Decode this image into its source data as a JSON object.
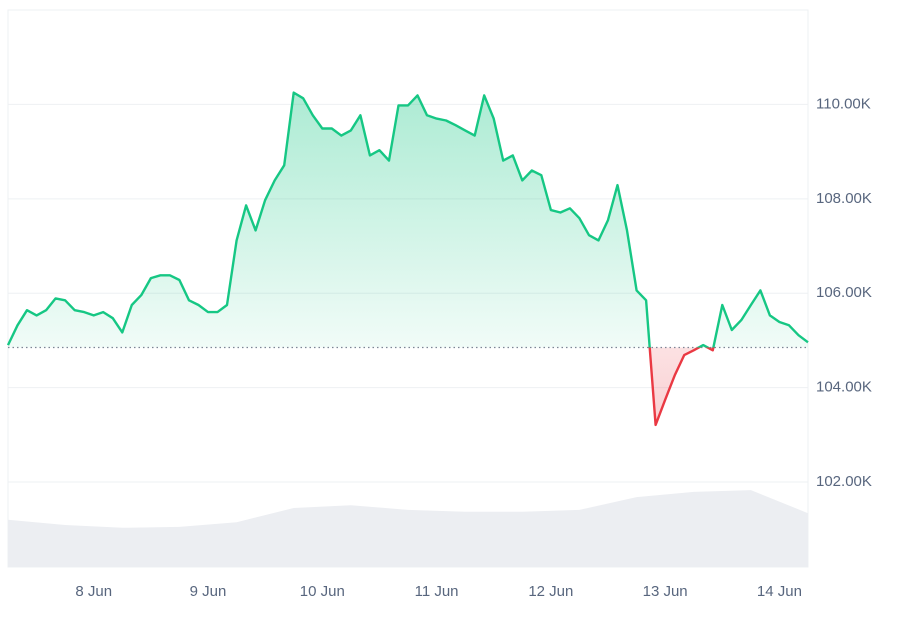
{
  "chart_data": {
    "type": "line",
    "xlim": [
      0,
      84
    ],
    "xticks": [
      {
        "value": 9,
        "label": "8 Jun"
      },
      {
        "value": 21,
        "label": "9 Jun"
      },
      {
        "value": 33,
        "label": "10 Jun"
      },
      {
        "value": 45,
        "label": "11 Jun"
      },
      {
        "value": 57,
        "label": "12 Jun"
      },
      {
        "value": 69,
        "label": "13 Jun"
      },
      {
        "value": 81,
        "label": "14 Jun"
      }
    ],
    "ylim": [
      100200,
      112000
    ],
    "yticks": [
      {
        "value": 102000,
        "label": "102.00K"
      },
      {
        "value": 104000,
        "label": "104.00K"
      },
      {
        "value": 106000,
        "label": "106.00K"
      },
      {
        "value": 108000,
        "label": "108.00K"
      },
      {
        "value": 110000,
        "label": "110.00K"
      }
    ],
    "grid": true,
    "baseline": 104850,
    "up_color": "#16c784",
    "down_color": "#ea3943",
    "values": [
      104900,
      105320,
      105640,
      105530,
      105640,
      105890,
      105850,
      105640,
      105600,
      105530,
      105600,
      105470,
      105170,
      105750,
      105960,
      106320,
      106380,
      106380,
      106280,
      105850,
      105750,
      105600,
      105600,
      105750,
      107120,
      107860,
      107330,
      107970,
      108390,
      108710,
      110250,
      110130,
      109770,
      109490,
      109490,
      109340,
      109450,
      109770,
      108920,
      109030,
      108810,
      109980,
      109980,
      110190,
      109770,
      109700,
      109660,
      109560,
      109450,
      109340,
      110190,
      109700,
      108810,
      108920,
      108390,
      108600,
      108500,
      107760,
      107710,
      107800,
      107590,
      107230,
      107120,
      107550,
      108290,
      107330,
      106060,
      105850,
      103210,
      103740,
      104260,
      104690,
      104790,
      104900,
      104790,
      105750,
      105220,
      105430,
      105750,
      106060,
      105530,
      105390,
      105320,
      105110,
      104960
    ],
    "volume": {
      "color": "#eceef2",
      "values": [
        101200,
        101090,
        101030,
        101050,
        101150,
        101450,
        101510,
        101410,
        101370,
        101370,
        101410,
        101680,
        101790,
        101830,
        101340
      ]
    }
  }
}
